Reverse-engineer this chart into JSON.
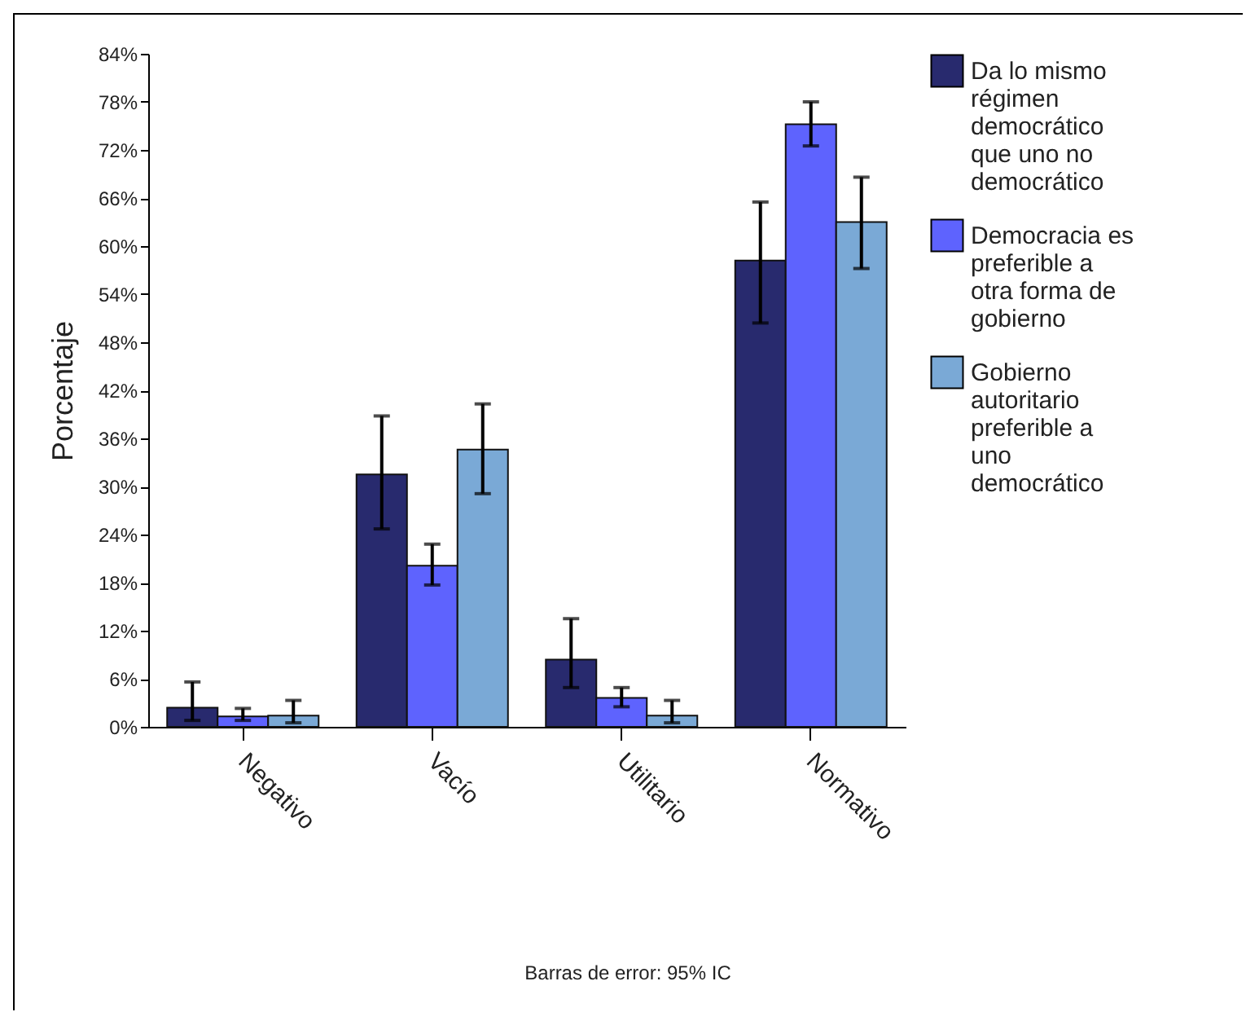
{
  "chart_data": {
    "type": "bar",
    "ylabel": "Porcentaje",
    "categories": [
      "Negativo",
      "Vacío",
      "Utilitario",
      "Normativo"
    ],
    "series": [
      {
        "name": "Da lo mismo régimen democrático que uno no democrático",
        "color": "#282a6e",
        "values": [
          2.4,
          31.5,
          8.4,
          58.2
        ],
        "errors": [
          [
            0.8,
            5.6
          ],
          [
            24.7,
            38.8
          ],
          [
            4.9,
            13.5
          ],
          [
            50.4,
            65.5
          ]
        ]
      },
      {
        "name": "Democracia es preferible a otra forma de gobierno",
        "color": "#5e63fe",
        "values": [
          1.3,
          20.1,
          3.6,
          75.2
        ],
        "errors": [
          [
            0.8,
            2.3
          ],
          [
            17.7,
            22.8
          ],
          [
            2.5,
            4.9
          ],
          [
            72.5,
            78.0
          ]
        ]
      },
      {
        "name": "Gobierno autoritario preferible a uno democrático",
        "color": "#7aa9d6",
        "values": [
          1.4,
          34.6,
          1.4,
          63.0
        ],
        "errors": [
          [
            0.5,
            3.3
          ],
          [
            29.1,
            40.3
          ],
          [
            0.5,
            3.3
          ],
          [
            57.2,
            68.6
          ]
        ]
      }
    ],
    "ylim": [
      0,
      84
    ],
    "yticks": [
      {
        "value": 0,
        "label": "0%"
      },
      {
        "value": 6,
        "label": "6%"
      },
      {
        "value": 12,
        "label": "12%"
      },
      {
        "value": 18,
        "label": "18%"
      },
      {
        "value": 24,
        "label": "24%"
      },
      {
        "value": 30,
        "label": "30%"
      },
      {
        "value": 36,
        "label": "36%"
      },
      {
        "value": 42,
        "label": "42%"
      },
      {
        "value": 48,
        "label": "48%"
      },
      {
        "value": 54,
        "label": "54%"
      },
      {
        "value": 60,
        "label": "60%"
      },
      {
        "value": 66,
        "label": "66%"
      },
      {
        "value": 72,
        "label": "72%"
      },
      {
        "value": 78,
        "label": "78%"
      },
      {
        "value": 84,
        "label": "84%"
      }
    ],
    "grid": false,
    "legend": "right",
    "annotations": [
      "Barras de error: 95% IC"
    ]
  }
}
